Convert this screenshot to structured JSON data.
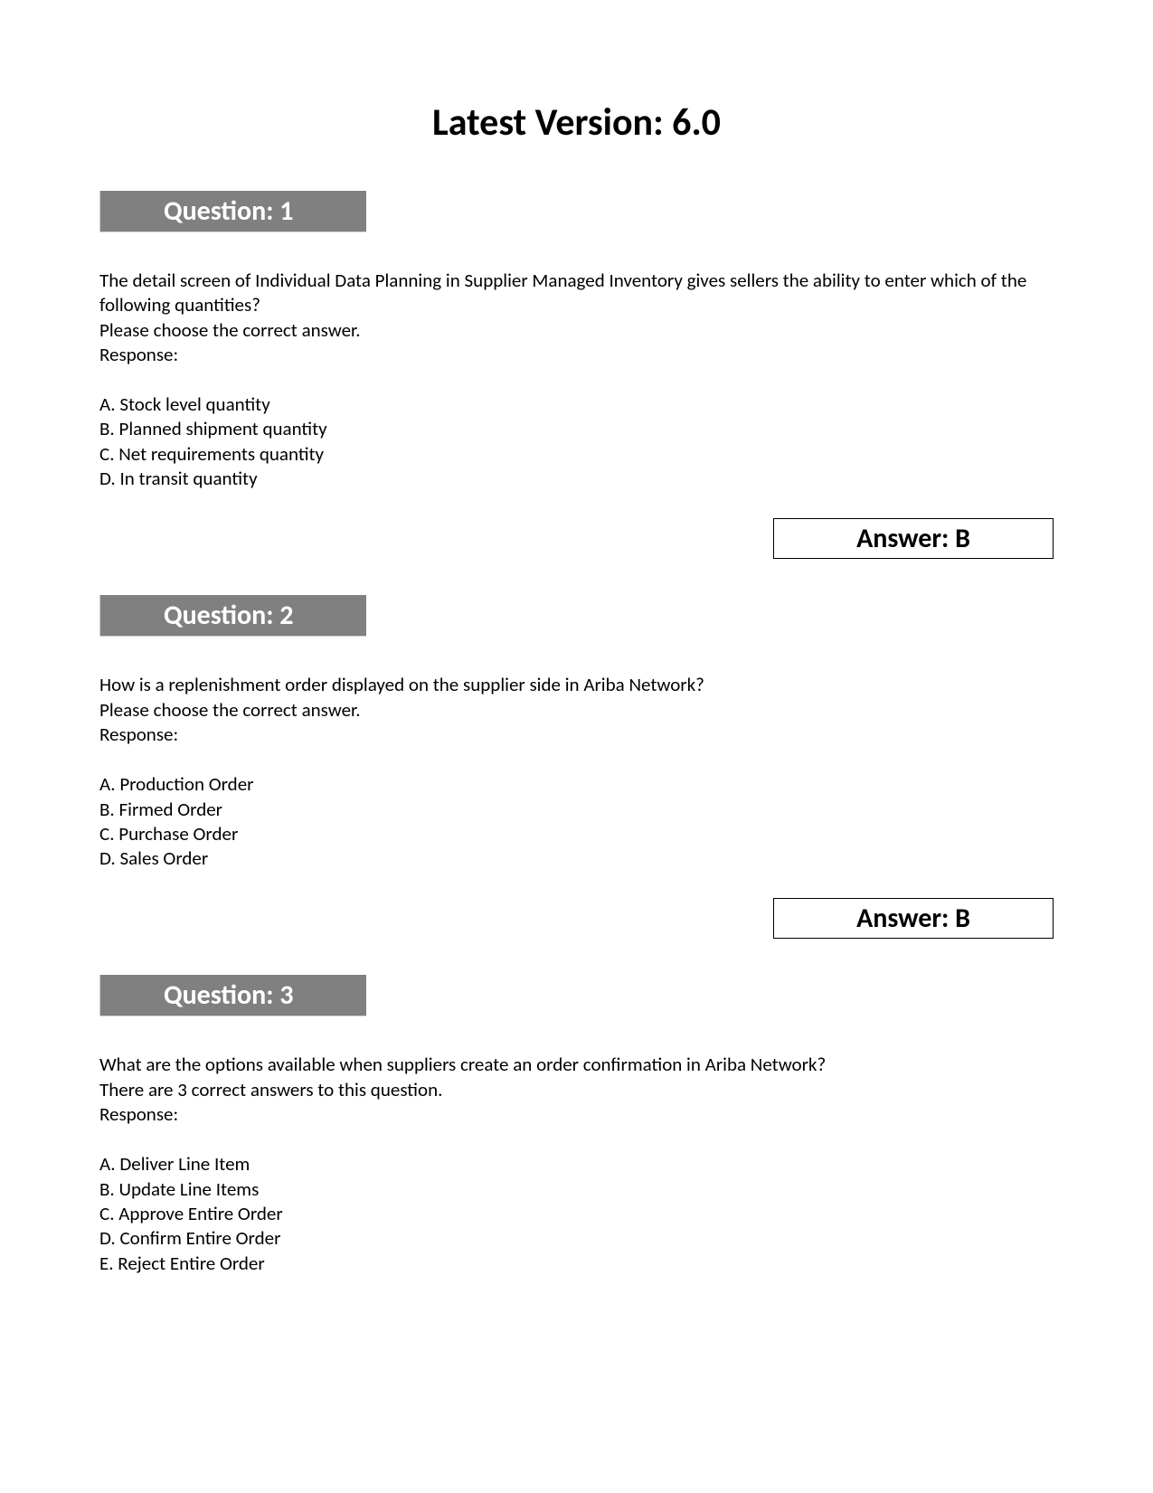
{
  "title": "Latest Version: 6.0",
  "questions": [
    {
      "header": "Question: 1",
      "prompt_lines": [
        "The detail screen of Individual Data Planning in Supplier Managed Inventory gives sellers the ability to enter which of the following quantities?",
        "Please choose the correct answer.",
        "Response:"
      ],
      "options": [
        "A. Stock level quantity",
        "B. Planned shipment quantity",
        "C. Net requirements quantity",
        "D. In transit quantity"
      ],
      "answer": "Answer: B"
    },
    {
      "header": "Question: 2",
      "prompt_lines": [
        "How is a replenishment order displayed on the supplier side in Ariba Network?",
        "Please choose the correct answer.",
        "Response:"
      ],
      "options": [
        "A. Production Order",
        "B. Firmed Order",
        "C. Purchase Order",
        "D. Sales Order"
      ],
      "answer": "Answer: B"
    },
    {
      "header": "Question: 3",
      "prompt_lines": [
        "What are the options available when suppliers create an order confirmation in Ariba Network?",
        "There are 3 correct answers to this question.",
        "Response:"
      ],
      "options": [
        "A. Deliver Line Item",
        "B. Update Line Items",
        "C. Approve Entire Order",
        "D. Confirm Entire Order",
        "E. Reject Entire Order"
      ],
      "answer": null
    }
  ],
  "colors": {
    "header_bg": "#808080",
    "header_text": "#ffffff",
    "body_text": "#000000",
    "page_bg": "#ffffff",
    "border": "#000000"
  }
}
